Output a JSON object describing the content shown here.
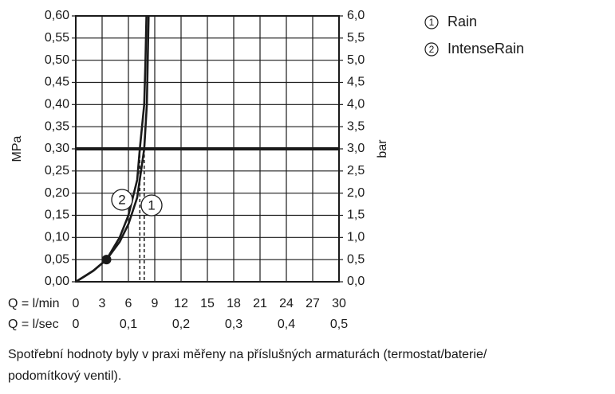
{
  "chart_data": {
    "type": "line",
    "xlabel": "Q = l/min",
    "x2label": "Q = l/sec",
    "ylabel": "MPa",
    "y2label": "bar",
    "xlim": [
      0,
      30
    ],
    "xticks": [
      0,
      3,
      6,
      9,
      12,
      15,
      18,
      21,
      24,
      27,
      30
    ],
    "x2lim": [
      0,
      0.5
    ],
    "x2ticks": [
      0,
      {
        "value": 0.1,
        "label": "0,1"
      },
      {
        "value": 0.2,
        "label": "0,2"
      },
      {
        "value": 0.3,
        "label": "0,3"
      },
      {
        "value": 0.4,
        "label": "0,4"
      },
      {
        "value": 0.5,
        "label": "0,5"
      }
    ],
    "ylim": [
      0,
      0.6
    ],
    "yticks": [
      {
        "value": 0,
        "label": "0,00"
      },
      {
        "value": 0.05,
        "label": "0,05"
      },
      {
        "value": 0.1,
        "label": "0,10"
      },
      {
        "value": 0.15,
        "label": "0,15"
      },
      {
        "value": 0.2,
        "label": "0,20"
      },
      {
        "value": 0.25,
        "label": "0,25"
      },
      {
        "value": 0.3,
        "label": "0,30"
      },
      {
        "value": 0.35,
        "label": "0,35"
      },
      {
        "value": 0.4,
        "label": "0,40"
      },
      {
        "value": 0.45,
        "label": "0,45"
      },
      {
        "value": 0.5,
        "label": "0,50"
      },
      {
        "value": 0.55,
        "label": "0,55"
      },
      {
        "value": 0.6,
        "label": "0,60"
      }
    ],
    "y2lim": [
      0,
      6
    ],
    "y2ticks": [
      {
        "value": 0,
        "label": "0,0"
      },
      {
        "value": 0.5,
        "label": "0,5"
      },
      {
        "value": 1,
        "label": "1,0"
      },
      {
        "value": 1.5,
        "label": "1,5"
      },
      {
        "value": 2,
        "label": "2,0"
      },
      {
        "value": 2.5,
        "label": "2,5"
      },
      {
        "value": 3,
        "label": "3,0"
      },
      {
        "value": 3.5,
        "label": "3,5"
      },
      {
        "value": 4,
        "label": "4,0"
      },
      {
        "value": 4.5,
        "label": "4,5"
      },
      {
        "value": 5,
        "label": "5,0"
      },
      {
        "value": 5.5,
        "label": "5,5"
      },
      {
        "value": 6,
        "label": "6,0"
      }
    ],
    "grid": true,
    "threshold": 0.3,
    "marker": {
      "x": 3.5,
      "y": 0.05
    },
    "series": [
      {
        "name": "Rain",
        "label": "1",
        "color": "#1a1a1a",
        "reference_x": 7.8,
        "x": [
          0,
          1,
          2,
          3.5,
          5,
          6,
          7,
          7.8,
          8.1,
          8.2,
          8.3
        ],
        "values": [
          0,
          0.012,
          0.025,
          0.05,
          0.09,
          0.13,
          0.19,
          0.3,
          0.4,
          0.5,
          0.6
        ]
      },
      {
        "name": "IntenseRain",
        "label": "2",
        "color": "#1a1a1a",
        "reference_x": 7.3,
        "x": [
          0,
          2,
          3.5,
          5,
          6,
          7,
          7.3,
          7.8,
          7.95,
          8.05
        ],
        "values": [
          0,
          0.025,
          0.05,
          0.1,
          0.15,
          0.23,
          0.3,
          0.4,
          0.5,
          0.6
        ]
      }
    ]
  },
  "caption": [
    "Spotřební hodnoty byly v praxi měřeny na příslušných armaturách (termostat/baterie/",
    "podomítkový ventil)."
  ]
}
